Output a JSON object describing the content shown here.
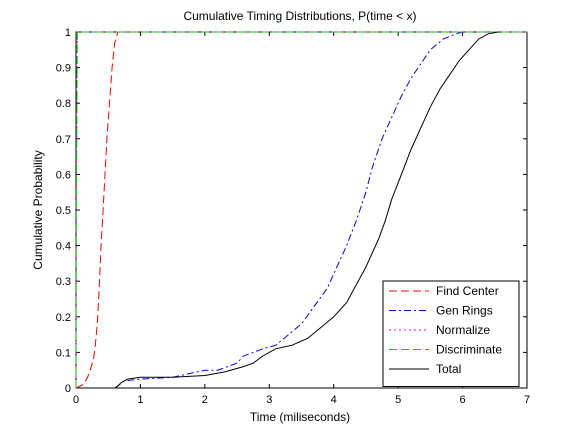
{
  "chart_data": {
    "type": "line",
    "title": "Cumulative Timing Distributions, P(time < x)",
    "xlabel": "Time (miliseconds)",
    "ylabel": "Cumulative Probability",
    "xlim": [
      0,
      7
    ],
    "ylim": [
      0,
      1
    ],
    "xticks": [
      "0",
      "1",
      "2",
      "3",
      "4",
      "5",
      "6",
      "7"
    ],
    "yticks": [
      "0",
      "0.1",
      "0.2",
      "0.3",
      "0.4",
      "0.5",
      "0.6",
      "0.7",
      "0.8",
      "0.9",
      "1"
    ],
    "grid": false,
    "legend_position": "bottom-right",
    "series": [
      {
        "name": "Find Center",
        "color": "#ff0000",
        "dash": "dashed",
        "x": [
          0.0,
          0.12,
          0.18,
          0.22,
          0.27,
          0.3,
          0.33,
          0.36,
          0.39,
          0.42,
          0.45,
          0.48,
          0.52,
          0.56,
          0.6,
          0.65
        ],
        "y": [
          0.0,
          0.01,
          0.03,
          0.05,
          0.08,
          0.12,
          0.18,
          0.28,
          0.4,
          0.5,
          0.6,
          0.7,
          0.8,
          0.9,
          0.97,
          1.0
        ]
      },
      {
        "name": "Gen Rings",
        "color": "#0000ff",
        "dash": "dashdot",
        "x": [
          0.6,
          0.68,
          0.75,
          1.0,
          1.5,
          2.0,
          2.2,
          2.5,
          2.6,
          2.75,
          2.9,
          3.1,
          3.3,
          3.5,
          3.7,
          3.9,
          4.05,
          4.2,
          4.35,
          4.5,
          4.6,
          4.75,
          4.9,
          5.05,
          5.2,
          5.35,
          5.5,
          5.7,
          5.9,
          6.0
        ],
        "y": [
          0.0,
          0.01,
          0.02,
          0.025,
          0.03,
          0.05,
          0.05,
          0.07,
          0.09,
          0.1,
          0.11,
          0.12,
          0.15,
          0.18,
          0.23,
          0.28,
          0.34,
          0.4,
          0.47,
          0.55,
          0.62,
          0.7,
          0.76,
          0.82,
          0.87,
          0.91,
          0.95,
          0.98,
          0.995,
          1.0
        ]
      },
      {
        "name": "Normalize",
        "color": "#ff00ff",
        "dash": "dotted",
        "x": [
          0.0,
          0.005,
          0.02,
          7.0
        ],
        "y": [
          0.0,
          0.5,
          1.0,
          1.0
        ]
      },
      {
        "name": "Discriminate",
        "color": "#00cc00",
        "dash": "dashed",
        "x": [
          0.0,
          0.005,
          0.02,
          7.0
        ],
        "y": [
          0.0,
          0.5,
          1.0,
          1.0
        ]
      },
      {
        "name": "Total",
        "color": "#000000",
        "dash": "solid",
        "x": [
          0.62,
          0.7,
          0.8,
          1.0,
          1.5,
          2.0,
          2.3,
          2.6,
          2.75,
          2.9,
          3.1,
          3.35,
          3.6,
          3.8,
          4.0,
          4.2,
          4.35,
          4.5,
          4.6,
          4.7,
          4.8,
          4.9,
          5.05,
          5.2,
          5.35,
          5.5,
          5.65,
          5.8,
          5.95,
          6.1,
          6.25,
          6.4,
          6.55
        ],
        "y": [
          0.0,
          0.015,
          0.025,
          0.03,
          0.03,
          0.035,
          0.045,
          0.06,
          0.07,
          0.09,
          0.11,
          0.12,
          0.14,
          0.17,
          0.2,
          0.24,
          0.29,
          0.34,
          0.38,
          0.42,
          0.47,
          0.53,
          0.6,
          0.67,
          0.73,
          0.79,
          0.84,
          0.88,
          0.92,
          0.95,
          0.98,
          0.995,
          1.0
        ]
      }
    ]
  }
}
